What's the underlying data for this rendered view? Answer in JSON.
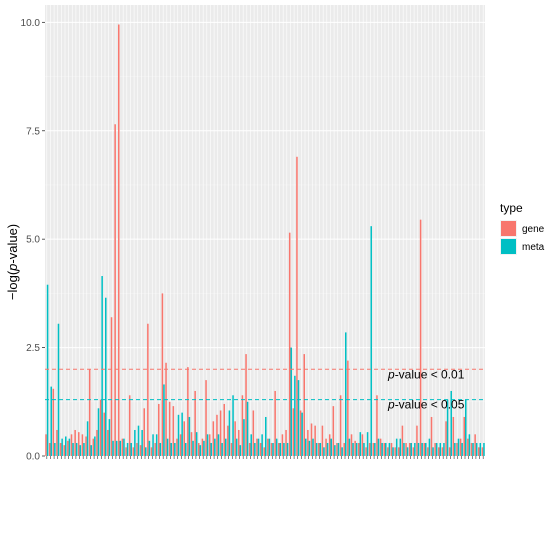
{
  "chart_data": {
    "type": "bar",
    "xlabel": "",
    "ylabel_prefix": "−log(",
    "ylabel_italic": "p",
    "ylabel_suffix": "-value)",
    "ylim": [
      0,
      10.4
    ],
    "yticks": [
      {
        "value": 0,
        "label": "0.0"
      },
      {
        "value": 2.5,
        "label": "2.5"
      },
      {
        "value": 5,
        "label": "5.0"
      },
      {
        "value": 7.5,
        "label": "7.5"
      },
      {
        "value": 10,
        "label": "10.0"
      }
    ],
    "grid": true,
    "legend": {
      "title": "type",
      "position": "right",
      "entries": [
        {
          "name": "gene",
          "color": "#F8766D"
        },
        {
          "name": "meta",
          "color": "#00BFC4"
        }
      ]
    },
    "thresholds": [
      {
        "value": 2,
        "color": "#F8766D",
        "label_italic": "p",
        "label_rest": "-value < 0.01"
      },
      {
        "value": 1.3,
        "color": "#00BFC4",
        "label_italic": "p",
        "label_rest": "-value < 0.05"
      }
    ],
    "series": [
      {
        "name": "gene",
        "values": [
          0.5,
          0.3,
          1.55,
          0.6,
          0.3,
          0.25,
          0.35,
          0.5,
          0.6,
          0.55,
          0.5,
          0.45,
          2,
          0.4,
          0.6,
          1.3,
          1,
          0.6,
          3.2,
          7.65,
          9.95,
          0.4,
          0.2,
          1.4,
          0.2,
          0.3,
          0.25,
          1.1,
          3.05,
          0.2,
          0.3,
          1.2,
          3.75,
          2.15,
          1.25,
          1.15,
          0.4,
          0.5,
          0.8,
          2.05,
          0.55,
          1.5,
          0.3,
          0.4,
          1.75,
          0.5,
          0.8,
          0.95,
          1.05,
          1.2,
          0.7,
          0.3,
          0.8,
          0.6,
          1.4,
          2.35,
          0.3,
          1.05,
          0.4,
          0.3,
          0.2,
          0.4,
          0.3,
          1.5,
          0.3,
          0.5,
          0.6,
          5.15,
          1.1,
          6.9,
          1.05,
          2.35,
          0.6,
          0.75,
          0.7,
          0.3,
          0.7,
          0.4,
          0.5,
          1.15,
          0.3,
          1.4,
          0.3,
          2.2,
          0.5,
          0.35,
          0.3,
          0.5,
          0.2,
          0.3,
          0.3,
          1.4,
          0.4,
          0.3,
          0.2,
          0.3,
          0.2,
          0.2,
          0.7,
          0.3,
          0.3,
          0.2,
          0.7,
          5.45,
          0.3,
          0.2,
          0.9,
          0.3,
          0.2,
          0.2,
          0.8,
          0.2,
          0.9,
          0.3,
          0.4,
          0.9,
          0.4,
          0.3,
          0.5,
          0.2,
          0.2
        ]
      },
      {
        "name": "meta",
        "values": [
          3.95,
          1.6,
          0.3,
          3.05,
          0.4,
          0.45,
          0.4,
          0.3,
          0.3,
          0.25,
          0.3,
          0.8,
          0.25,
          0.45,
          1.1,
          4.15,
          3.65,
          0.85,
          0.35,
          0.35,
          0.35,
          0.4,
          0.3,
          0.3,
          0.6,
          0.7,
          0.6,
          0.2,
          0.35,
          0.5,
          0.5,
          0.3,
          1.65,
          0.4,
          0.3,
          0.3,
          0.95,
          1,
          0.3,
          0.9,
          0.35,
          0.55,
          0.25,
          0.35,
          0.5,
          0.3,
          0.4,
          0.5,
          0.3,
          0.4,
          1.05,
          1.4,
          0.4,
          0.25,
          0.85,
          1.25,
          0.5,
          0.3,
          0.4,
          0.5,
          0.9,
          0.4,
          0.3,
          0.4,
          0.3,
          0.3,
          0.3,
          2.5,
          1.85,
          1.75,
          1,
          0.4,
          0.35,
          0.4,
          0.3,
          0.3,
          0.2,
          0.3,
          0.4,
          0.25,
          0.3,
          0.2,
          2.85,
          0.4,
          0.3,
          0.3,
          0.55,
          0.3,
          0.55,
          5.3,
          0.3,
          0.4,
          0.3,
          0.3,
          0.3,
          0.2,
          0.4,
          0.4,
          0.3,
          0.2,
          0.3,
          0.3,
          0.3,
          0.3,
          0.3,
          0.4,
          0.2,
          0.3,
          0.3,
          0.3,
          1.3,
          1.5,
          0.3,
          0.4,
          0.3,
          1.3,
          0.5,
          0.3,
          0.3,
          0.3,
          0.3
        ]
      }
    ]
  }
}
